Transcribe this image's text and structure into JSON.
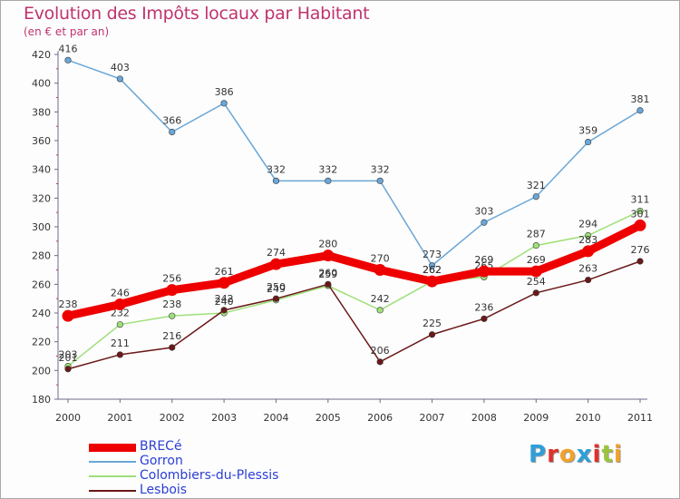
{
  "header": {
    "title": "Evolution des Impôts locaux par Habitant",
    "subtitle": "(en € et par an)"
  },
  "chart_data": {
    "type": "line",
    "title": "Evolution des Impôts locaux par Habitant",
    "subtitle": "(en € et par an)",
    "xlabel": "",
    "ylabel": "",
    "categories": [
      "2000",
      "2001",
      "2002",
      "2003",
      "2004",
      "2005",
      "2006",
      "2007",
      "2008",
      "2009",
      "2010",
      "2011"
    ],
    "ylim": [
      180,
      420
    ],
    "yticks": [
      180,
      200,
      220,
      240,
      260,
      280,
      300,
      320,
      340,
      360,
      380,
      400,
      420
    ],
    "grid": false,
    "legend_position": "bottom-left",
    "series": [
      {
        "name": "BRECé",
        "color": "#ee0000",
        "highlight": true,
        "values": [
          238,
          246,
          256,
          261,
          274,
          280,
          270,
          262,
          269,
          269,
          283,
          301
        ]
      },
      {
        "name": "Gorron",
        "color": "#6aa6d6",
        "highlight": false,
        "values": [
          416,
          403,
          366,
          386,
          332,
          332,
          332,
          273,
          303,
          321,
          359,
          381
        ]
      },
      {
        "name": "Colombiers-du-Plessis",
        "color": "#9ee07a",
        "highlight": false,
        "values": [
          203,
          232,
          238,
          240,
          249,
          259,
          242,
          262,
          265,
          287,
          294,
          311
        ]
      },
      {
        "name": "Lesbois",
        "color": "#6b1818",
        "highlight": false,
        "values": [
          201,
          211,
          216,
          242,
          250,
          260,
          206,
          225,
          236,
          254,
          263,
          276
        ]
      }
    ]
  },
  "legend": {
    "items": [
      {
        "label": "BRECé",
        "color": "#ee0000"
      },
      {
        "label": "Gorron",
        "color": "#6aa6d6"
      },
      {
        "label": "Colombiers-du-Plessis",
        "color": "#9ee07a"
      },
      {
        "label": "Lesbois",
        "color": "#6b1818"
      }
    ]
  },
  "logo": {
    "letters": [
      "P",
      "r",
      "o",
      "x",
      "i",
      "t",
      "i"
    ],
    "colors": [
      "#2e9fd9",
      "#e0312b",
      "#f2a12c",
      "#2e9fd9",
      "#e0312b",
      "#9ac43c",
      "#f2a12c"
    ]
  }
}
